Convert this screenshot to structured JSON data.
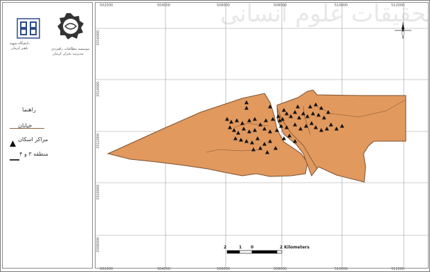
{
  "map": {
    "x_ticks": [
      "502000",
      "504000",
      "506000",
      "508000",
      "510000",
      "512000",
      "514000"
    ],
    "y_ticks": [
      "3316000",
      "3314000",
      "3312000",
      "3310000",
      "3308000",
      "3306000"
    ],
    "x_ticks_bottom": [
      "502000",
      "504000",
      "506000",
      "508000",
      "510000",
      "512000",
      "514000"
    ],
    "scale": {
      "labels": [
        "2",
        "1",
        "0",
        "2 Kilometers"
      ]
    },
    "colors": {
      "region_fill": "#e1995e",
      "region_stroke": "#7a5030",
      "grid": "#9a9a9a",
      "points": "#111111"
    },
    "north_arrow_icon": "north-arrow-icon",
    "watermark": "مرکز تحقیقات علوم انسانی"
  },
  "legend": {
    "title": "راهنما",
    "streets": "خیابان",
    "centers": "مراکز اسکان",
    "zones": "منطقه ۳ و ۴",
    "point_icon": "triangle-icon"
  },
  "logos": {
    "university_line1": "دانشگاه شهید",
    "university_line2": "باهنر کرمان",
    "institute_line1": "موسسه مطالعات راهبردی",
    "institute_line2": "مدیریت بحران کرمان",
    "uni_emblem_icon": "university-logo-icon",
    "institute_emblem_icon": "institute-logo-icon"
  }
}
